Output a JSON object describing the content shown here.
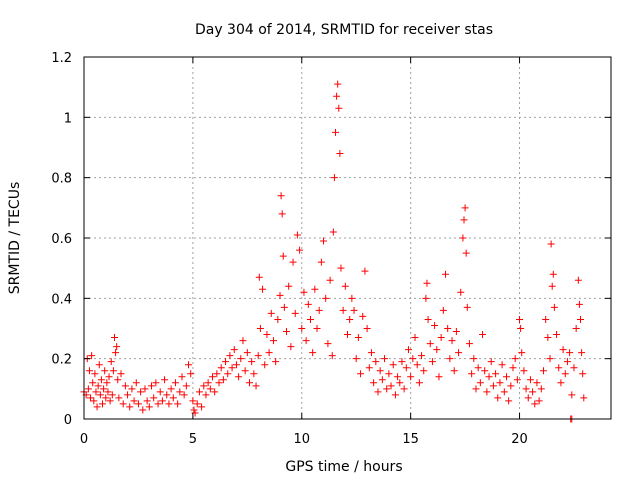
{
  "chart_data": {
    "type": "scatter",
    "title": "Day 304 of 2014, SRMTID for receiver stas",
    "xlabel": "GPS time / hours",
    "ylabel": "SRMTID / TECUs",
    "xlim": [
      0,
      24.2
    ],
    "ylim": [
      0,
      1.2
    ],
    "xticks": [
      0,
      5,
      10,
      15,
      20
    ],
    "xtick_labels": [
      "0",
      "5",
      "10",
      "15",
      "20"
    ],
    "yticks": [
      0,
      0.2,
      0.4,
      0.6,
      0.8,
      1.0,
      1.2
    ],
    "ytick_labels": [
      "0",
      "0.2",
      "0.4",
      "0.6",
      "0.8",
      "1",
      "1.2"
    ],
    "grid": true,
    "marker": "plus",
    "series": [
      {
        "name": "SRMTID",
        "color": "#ff0000",
        "points": [
          [
            0.0,
            0.09
          ],
          [
            0.1,
            0.08
          ],
          [
            0.15,
            0.2
          ],
          [
            0.2,
            0.1
          ],
          [
            0.25,
            0.16
          ],
          [
            0.3,
            0.07
          ],
          [
            0.35,
            0.21
          ],
          [
            0.4,
            0.12
          ],
          [
            0.45,
            0.06
          ],
          [
            0.5,
            0.15
          ],
          [
            0.55,
            0.09
          ],
          [
            0.6,
            0.04
          ],
          [
            0.65,
            0.11
          ],
          [
            0.7,
            0.18
          ],
          [
            0.75,
            0.08
          ],
          [
            0.8,
            0.13
          ],
          [
            0.85,
            0.05
          ],
          [
            0.9,
            0.1
          ],
          [
            0.95,
            0.16
          ],
          [
            1.0,
            0.07
          ],
          [
            1.05,
            0.12
          ],
          [
            1.1,
            0.09
          ],
          [
            1.15,
            0.14
          ],
          [
            1.2,
            0.06
          ],
          [
            1.25,
            0.19
          ],
          [
            1.3,
            0.08
          ],
          [
            1.35,
            0.16
          ],
          [
            1.4,
            0.27
          ],
          [
            1.45,
            0.22
          ],
          [
            1.5,
            0.24
          ],
          [
            1.55,
            0.13
          ],
          [
            1.6,
            0.07
          ],
          [
            1.7,
            0.15
          ],
          [
            1.8,
            0.05
          ],
          [
            1.9,
            0.11
          ],
          [
            2.0,
            0.08
          ],
          [
            2.1,
            0.04
          ],
          [
            2.2,
            0.1
          ],
          [
            2.3,
            0.06
          ],
          [
            2.4,
            0.12
          ],
          [
            2.5,
            0.05
          ],
          [
            2.6,
            0.09
          ],
          [
            2.7,
            0.03
          ],
          [
            2.8,
            0.1
          ],
          [
            2.9,
            0.06
          ],
          [
            3.0,
            0.04
          ],
          [
            3.1,
            0.11
          ],
          [
            3.2,
            0.07
          ],
          [
            3.3,
            0.12
          ],
          [
            3.4,
            0.05
          ],
          [
            3.5,
            0.09
          ],
          [
            3.6,
            0.06
          ],
          [
            3.7,
            0.13
          ],
          [
            3.8,
            0.08
          ],
          [
            3.9,
            0.05
          ],
          [
            4.0,
            0.1
          ],
          [
            4.1,
            0.07
          ],
          [
            4.2,
            0.12
          ],
          [
            4.3,
            0.05
          ],
          [
            4.4,
            0.09
          ],
          [
            4.5,
            0.14
          ],
          [
            4.6,
            0.08
          ],
          [
            4.7,
            0.11
          ],
          [
            4.8,
            0.18
          ],
          [
            4.9,
            0.15
          ],
          [
            5.0,
            0.06
          ],
          [
            5.05,
            0.03
          ],
          [
            5.1,
            0.02
          ],
          [
            5.2,
            0.05
          ],
          [
            5.3,
            0.09
          ],
          [
            5.4,
            0.04
          ],
          [
            5.5,
            0.11
          ],
          [
            5.6,
            0.08
          ],
          [
            5.7,
            0.12
          ],
          [
            5.8,
            0.1
          ],
          [
            5.9,
            0.14
          ],
          [
            6.0,
            0.09
          ],
          [
            6.1,
            0.15
          ],
          [
            6.2,
            0.12
          ],
          [
            6.3,
            0.17
          ],
          [
            6.4,
            0.13
          ],
          [
            6.5,
            0.19
          ],
          [
            6.6,
            0.15
          ],
          [
            6.7,
            0.21
          ],
          [
            6.8,
            0.17
          ],
          [
            6.9,
            0.23
          ],
          [
            7.0,
            0.18
          ],
          [
            7.1,
            0.14
          ],
          [
            7.2,
            0.2
          ],
          [
            7.3,
            0.26
          ],
          [
            7.4,
            0.16
          ],
          [
            7.5,
            0.22
          ],
          [
            7.6,
            0.12
          ],
          [
            7.7,
            0.19
          ],
          [
            7.8,
            0.15
          ],
          [
            7.9,
            0.11
          ],
          [
            8.0,
            0.21
          ],
          [
            8.05,
            0.47
          ],
          [
            8.1,
            0.3
          ],
          [
            8.2,
            0.43
          ],
          [
            8.3,
            0.18
          ],
          [
            8.4,
            0.28
          ],
          [
            8.5,
            0.22
          ],
          [
            8.6,
            0.35
          ],
          [
            8.7,
            0.26
          ],
          [
            8.8,
            0.19
          ],
          [
            8.9,
            0.33
          ],
          [
            9.0,
            0.41
          ],
          [
            9.05,
            0.74
          ],
          [
            9.1,
            0.68
          ],
          [
            9.15,
            0.54
          ],
          [
            9.2,
            0.37
          ],
          [
            9.3,
            0.29
          ],
          [
            9.4,
            0.44
          ],
          [
            9.5,
            0.24
          ],
          [
            9.6,
            0.52
          ],
          [
            9.7,
            0.35
          ],
          [
            9.8,
            0.61
          ],
          [
            9.9,
            0.56
          ],
          [
            10.0,
            0.3
          ],
          [
            10.1,
            0.42
          ],
          [
            10.2,
            0.26
          ],
          [
            10.3,
            0.38
          ],
          [
            10.4,
            0.33
          ],
          [
            10.5,
            0.22
          ],
          [
            10.6,
            0.43
          ],
          [
            10.7,
            0.3
          ],
          [
            10.8,
            0.36
          ],
          [
            10.9,
            0.52
          ],
          [
            11.0,
            0.59
          ],
          [
            11.1,
            0.4
          ],
          [
            11.2,
            0.25
          ],
          [
            11.3,
            0.46
          ],
          [
            11.4,
            0.21
          ],
          [
            11.45,
            0.62
          ],
          [
            11.5,
            0.8
          ],
          [
            11.55,
            0.95
          ],
          [
            11.6,
            1.07
          ],
          [
            11.65,
            1.11
          ],
          [
            11.7,
            1.03
          ],
          [
            11.75,
            0.88
          ],
          [
            11.8,
            0.5
          ],
          [
            11.9,
            0.36
          ],
          [
            12.0,
            0.44
          ],
          [
            12.1,
            0.28
          ],
          [
            12.2,
            0.33
          ],
          [
            12.3,
            0.4
          ],
          [
            12.4,
            0.36
          ],
          [
            12.5,
            0.2
          ],
          [
            12.6,
            0.27
          ],
          [
            12.7,
            0.15
          ],
          [
            12.8,
            0.34
          ],
          [
            12.9,
            0.49
          ],
          [
            13.0,
            0.3
          ],
          [
            13.1,
            0.17
          ],
          [
            13.2,
            0.22
          ],
          [
            13.3,
            0.12
          ],
          [
            13.4,
            0.19
          ],
          [
            13.5,
            0.09
          ],
          [
            13.6,
            0.16
          ],
          [
            13.7,
            0.13
          ],
          [
            13.8,
            0.2
          ],
          [
            13.9,
            0.1
          ],
          [
            14.0,
            0.15
          ],
          [
            14.1,
            0.11
          ],
          [
            14.2,
            0.18
          ],
          [
            14.3,
            0.08
          ],
          [
            14.4,
            0.14
          ],
          [
            14.5,
            0.12
          ],
          [
            14.6,
            0.19
          ],
          [
            14.7,
            0.1
          ],
          [
            14.8,
            0.17
          ],
          [
            14.9,
            0.23
          ],
          [
            15.0,
            0.14
          ],
          [
            15.1,
            0.2
          ],
          [
            15.2,
            0.27
          ],
          [
            15.3,
            0.18
          ],
          [
            15.4,
            0.12
          ],
          [
            15.5,
            0.21
          ],
          [
            15.6,
            0.16
          ],
          [
            15.7,
            0.4
          ],
          [
            15.75,
            0.45
          ],
          [
            15.8,
            0.33
          ],
          [
            15.9,
            0.25
          ],
          [
            16.0,
            0.19
          ],
          [
            16.1,
            0.31
          ],
          [
            16.2,
            0.23
          ],
          [
            16.3,
            0.14
          ],
          [
            16.4,
            0.27
          ],
          [
            16.5,
            0.36
          ],
          [
            16.6,
            0.48
          ],
          [
            16.7,
            0.3
          ],
          [
            16.8,
            0.2
          ],
          [
            16.9,
            0.26
          ],
          [
            17.0,
            0.16
          ],
          [
            17.1,
            0.29
          ],
          [
            17.2,
            0.22
          ],
          [
            17.3,
            0.42
          ],
          [
            17.4,
            0.6
          ],
          [
            17.45,
            0.66
          ],
          [
            17.5,
            0.7
          ],
          [
            17.55,
            0.55
          ],
          [
            17.6,
            0.37
          ],
          [
            17.7,
            0.25
          ],
          [
            17.8,
            0.15
          ],
          [
            17.9,
            0.2
          ],
          [
            18.0,
            0.1
          ],
          [
            18.1,
            0.17
          ],
          [
            18.2,
            0.12
          ],
          [
            18.3,
            0.28
          ],
          [
            18.4,
            0.16
          ],
          [
            18.5,
            0.09
          ],
          [
            18.6,
            0.14
          ],
          [
            18.7,
            0.19
          ],
          [
            18.8,
            0.11
          ],
          [
            18.9,
            0.15
          ],
          [
            19.0,
            0.07
          ],
          [
            19.1,
            0.12
          ],
          [
            19.2,
            0.18
          ],
          [
            19.3,
            0.09
          ],
          [
            19.4,
            0.14
          ],
          [
            19.5,
            0.06
          ],
          [
            19.6,
            0.11
          ],
          [
            19.7,
            0.17
          ],
          [
            19.8,
            0.2
          ],
          [
            19.9,
            0.13
          ],
          [
            20.0,
            0.33
          ],
          [
            20.05,
            0.3
          ],
          [
            20.1,
            0.22
          ],
          [
            20.2,
            0.16
          ],
          [
            20.3,
            0.1
          ],
          [
            20.4,
            0.07
          ],
          [
            20.5,
            0.13
          ],
          [
            20.6,
            0.09
          ],
          [
            20.7,
            0.05
          ],
          [
            20.8,
            0.12
          ],
          [
            20.9,
            0.06
          ],
          [
            21.0,
            0.1
          ],
          [
            21.1,
            0.16
          ],
          [
            21.2,
            0.33
          ],
          [
            21.3,
            0.27
          ],
          [
            21.4,
            0.2
          ],
          [
            21.45,
            0.58
          ],
          [
            21.5,
            0.44
          ],
          [
            21.55,
            0.48
          ],
          [
            21.6,
            0.37
          ],
          [
            21.7,
            0.28
          ],
          [
            21.8,
            0.17
          ],
          [
            21.9,
            0.12
          ],
          [
            22.0,
            0.23
          ],
          [
            22.1,
            0.15
          ],
          [
            22.2,
            0.19
          ],
          [
            22.3,
            0.22
          ],
          [
            22.4,
            0.08
          ],
          [
            22.5,
            0.17
          ],
          [
            22.6,
            0.3
          ],
          [
            22.7,
            0.46
          ],
          [
            22.75,
            0.38
          ],
          [
            22.8,
            0.33
          ],
          [
            22.85,
            0.22
          ],
          [
            22.9,
            0.15
          ],
          [
            22.95,
            0.07
          ],
          [
            22.35,
            0.0
          ],
          [
            22.4,
            0.0
          ]
        ]
      }
    ]
  }
}
